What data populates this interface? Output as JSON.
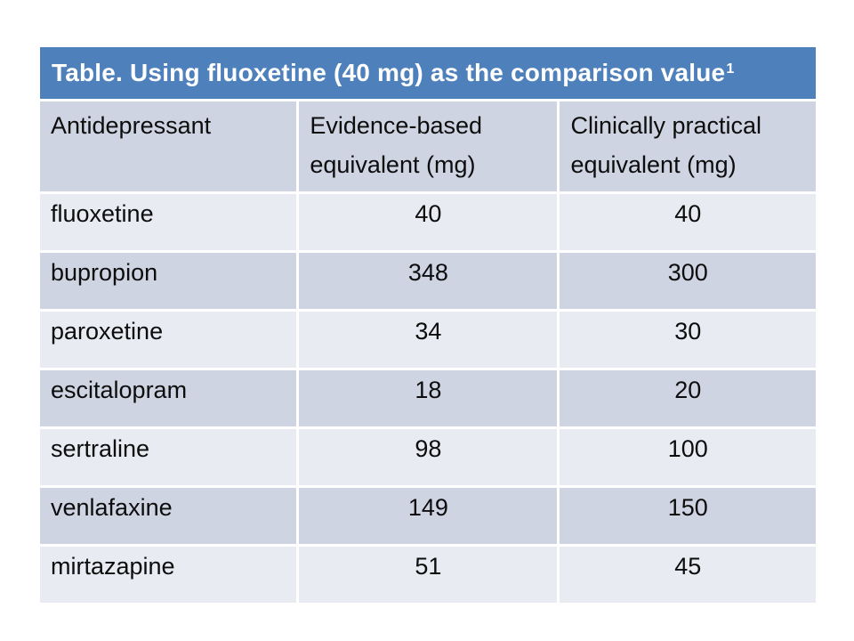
{
  "table": {
    "title": {
      "text": "Table. Using fluoxetine (40 mg) as the comparison value",
      "superscript": "1"
    },
    "columns": [
      "Antidepressant",
      "Evidence-based equivalent (mg)",
      "Clinically practical equivalent (mg)"
    ],
    "rows": [
      {
        "name": "fluoxetine",
        "evidence_based_mg": "40",
        "clinically_practical_mg": "40"
      },
      {
        "name": "bupropion",
        "evidence_based_mg": "348",
        "clinically_practical_mg": "300"
      },
      {
        "name": "paroxetine",
        "evidence_based_mg": "34",
        "clinically_practical_mg": "30"
      },
      {
        "name": "escitalopram",
        "evidence_based_mg": "18",
        "clinically_practical_mg": "20"
      },
      {
        "name": "sertraline",
        "evidence_based_mg": "98",
        "clinically_practical_mg": "100"
      },
      {
        "name": "venlafaxine",
        "evidence_based_mg": "149",
        "clinically_practical_mg": "150"
      },
      {
        "name": "mirtazapine",
        "evidence_based_mg": "51",
        "clinically_practical_mg": "45"
      }
    ]
  },
  "colors": {
    "title_bar_blue": "#4E80BC",
    "title_text": "#FFFFFF",
    "band_dark": "#CFD4E3",
    "band_light": "#E9EBF3",
    "body_text": "#0D0D0D",
    "separator": "#FFFFFF",
    "slide_background": "#FFFFFF"
  },
  "chart_data": {
    "type": "table",
    "title": "Table. Using fluoxetine (40 mg) as the comparison value¹",
    "columns": [
      "Antidepressant",
      "Evidence-based equivalent (mg)",
      "Clinically practical equivalent (mg)"
    ],
    "rows": [
      [
        "fluoxetine",
        40,
        40
      ],
      [
        "bupropion",
        348,
        300
      ],
      [
        "paroxetine",
        34,
        30
      ],
      [
        "escitalopram",
        18,
        20
      ],
      [
        "sertraline",
        98,
        100
      ],
      [
        "venlafaxine",
        149,
        150
      ],
      [
        "mirtazapine",
        51,
        45
      ]
    ],
    "layout_hints": {
      "title_row_style": "blue bar, white bold text",
      "banding": "alternating light/dark blue-gray rows starting light",
      "numeric_columns_alignment": "center",
      "name_column_alignment": "left"
    }
  }
}
